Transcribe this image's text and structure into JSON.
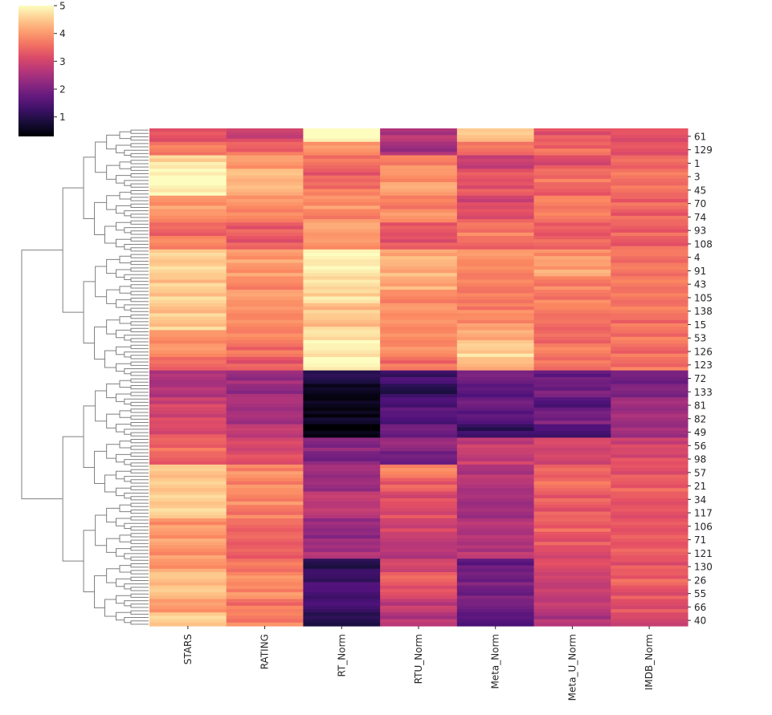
{
  "chart_data": {
    "type": "heatmap",
    "title": "",
    "xlabel": "",
    "ylabel": "",
    "colormap": "magma",
    "vmin": 0.3,
    "vmax": 5,
    "colorbar_ticks": [
      1,
      2,
      3,
      4,
      5
    ],
    "columns": [
      "STARS",
      "RATING",
      "RT_Norm",
      "RTU_Norm",
      "Meta_Norm",
      "Meta_U_Norm",
      "IMDB_Norm"
    ],
    "row_tick_labels": [
      "61",
      "129",
      "1",
      "3",
      "45",
      "70",
      "74",
      "93",
      "108",
      "4",
      "91",
      "43",
      "105",
      "138",
      "15",
      "53",
      "126",
      "123",
      "72",
      "133",
      "81",
      "82",
      "49",
      "56",
      "98",
      "57",
      "21",
      "34",
      "117",
      "106",
      "71",
      "121",
      "130",
      "26",
      "55",
      "66",
      "40"
    ],
    "row_groups": [
      {
        "label": "61",
        "values": [
          3.2,
          3.0,
          5.0,
          2.6,
          4.5,
          3.3,
          3.3
        ]
      },
      {
        "label": "129",
        "values": [
          3.6,
          3.5,
          3.9,
          2.5,
          3.6,
          3.5,
          3.3
        ]
      },
      {
        "label": "1",
        "values": [
          4.7,
          4.1,
          3.5,
          3.8,
          2.8,
          3.2,
          3.5
        ]
      },
      {
        "label": "3",
        "values": [
          5.0,
          4.4,
          3.4,
          4.0,
          3.2,
          3.6,
          3.6
        ]
      },
      {
        "label": "45",
        "values": [
          5.0,
          4.3,
          3.6,
          4.2,
          3.3,
          3.5,
          3.5
        ]
      },
      {
        "label": "70",
        "values": [
          4.0,
          3.9,
          4.0,
          3.7,
          3.0,
          3.8,
          3.5
        ]
      },
      {
        "label": "74",
        "values": [
          4.0,
          3.7,
          3.8,
          3.9,
          3.3,
          3.7,
          3.4
        ]
      },
      {
        "label": "93",
        "values": [
          3.5,
          3.4,
          4.2,
          3.2,
          3.7,
          3.3,
          3.5
        ]
      },
      {
        "label": "108",
        "values": [
          3.8,
          3.3,
          4.0,
          3.3,
          3.6,
          3.4,
          3.4
        ]
      },
      {
        "label": "4",
        "values": [
          4.5,
          4.1,
          4.9,
          4.2,
          4.0,
          4.0,
          3.7
        ]
      },
      {
        "label": "91",
        "values": [
          4.5,
          4.0,
          4.8,
          4.3,
          3.8,
          4.1,
          3.7
        ]
      },
      {
        "label": "43",
        "values": [
          4.5,
          3.9,
          4.6,
          4.2,
          3.7,
          3.8,
          3.7
        ]
      },
      {
        "label": "105",
        "values": [
          4.5,
          4.1,
          4.7,
          3.9,
          3.6,
          3.7,
          3.6
        ]
      },
      {
        "label": "138",
        "values": [
          4.5,
          3.9,
          4.4,
          4.0,
          3.8,
          3.8,
          3.6
        ]
      },
      {
        "label": "15",
        "values": [
          4.5,
          3.8,
          4.5,
          3.9,
          3.9,
          3.6,
          3.6
        ]
      },
      {
        "label": "53",
        "values": [
          4.0,
          3.7,
          4.8,
          3.8,
          4.3,
          3.5,
          3.6
        ]
      },
      {
        "label": "126",
        "values": [
          4.0,
          3.6,
          4.9,
          3.8,
          4.6,
          3.7,
          3.6
        ]
      },
      {
        "label": "123",
        "values": [
          3.5,
          3.3,
          5.0,
          3.6,
          4.4,
          3.5,
          3.6
        ]
      },
      {
        "label": "72",
        "values": [
          2.5,
          2.4,
          1.0,
          1.3,
          2.0,
          1.8,
          2.0
        ]
      },
      {
        "label": "133",
        "values": [
          2.5,
          2.3,
          0.5,
          1.1,
          1.6,
          1.9,
          2.1
        ]
      },
      {
        "label": "81",
        "values": [
          3.0,
          2.6,
          0.4,
          1.5,
          1.8,
          1.6,
          2.4
        ]
      },
      {
        "label": "82",
        "values": [
          3.0,
          2.5,
          0.6,
          1.6,
          1.5,
          2.0,
          2.4
        ]
      },
      {
        "label": "49",
        "values": [
          3.2,
          2.8,
          0.3,
          1.9,
          1.2,
          1.5,
          2.3
        ]
      },
      {
        "label": "56",
        "values": [
          3.5,
          3.0,
          2.2,
          2.3,
          2.8,
          3.1,
          3.0
        ]
      },
      {
        "label": "98",
        "values": [
          3.5,
          3.1,
          2.0,
          1.8,
          2.9,
          3.0,
          3.1
        ]
      },
      {
        "label": "57",
        "values": [
          4.5,
          3.9,
          2.5,
          3.7,
          2.6,
          3.4,
          3.3
        ]
      },
      {
        "label": "21",
        "values": [
          4.5,
          3.8,
          2.4,
          3.4,
          2.7,
          3.5,
          3.4
        ]
      },
      {
        "label": "34",
        "values": [
          4.5,
          3.9,
          2.8,
          3.1,
          2.5,
          3.4,
          3.4
        ]
      },
      {
        "label": "117",
        "values": [
          4.5,
          3.7,
          2.7,
          3.2,
          2.4,
          3.3,
          3.3
        ]
      },
      {
        "label": "106",
        "values": [
          4.0,
          3.6,
          2.2,
          3.0,
          2.6,
          3.5,
          3.3
        ]
      },
      {
        "label": "71",
        "values": [
          4.0,
          3.5,
          2.3,
          2.9,
          2.5,
          3.3,
          3.3
        ]
      },
      {
        "label": "121",
        "values": [
          4.0,
          3.4,
          2.5,
          2.7,
          2.7,
          3.2,
          3.3
        ]
      },
      {
        "label": "130",
        "values": [
          4.0,
          3.6,
          1.1,
          3.0,
          1.7,
          3.2,
          3.3
        ]
      },
      {
        "label": "26",
        "values": [
          4.5,
          3.8,
          1.3,
          3.4,
          2.0,
          2.9,
          3.4
        ]
      },
      {
        "label": "55",
        "values": [
          4.5,
          3.9,
          1.5,
          3.1,
          1.9,
          2.8,
          3.3
        ]
      },
      {
        "label": "66",
        "values": [
          4.0,
          3.6,
          1.4,
          2.8,
          2.0,
          2.7,
          3.2
        ]
      },
      {
        "label": "40",
        "values": [
          4.5,
          3.8,
          1.0,
          2.6,
          1.6,
          2.6,
          3.1
        ]
      }
    ]
  }
}
